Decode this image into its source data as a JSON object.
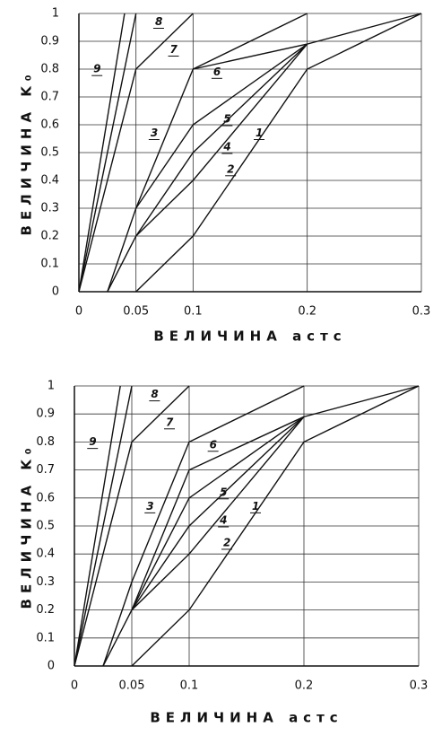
{
  "chart_data": [
    {
      "type": "line",
      "x_label": "ВЕЛИЧИНА aстс",
      "y_label": "ВЕЛИЧИНА K₀",
      "xlim": [
        0,
        0.3
      ],
      "xticks": [
        0,
        0.05,
        0.1,
        0.2,
        0.3
      ],
      "ylim": [
        0,
        1
      ],
      "yticks": [
        0,
        0.1,
        0.2,
        0.3,
        0.4,
        0.5,
        0.6,
        0.7,
        0.8,
        0.9,
        1
      ],
      "grid": true,
      "series": [
        {
          "name": "1",
          "color": "#111",
          "x": [
            0.05,
            0.1,
            0.2,
            0.3
          ],
          "values": [
            0,
            0.2,
            0.8,
            1
          ]
        },
        {
          "name": "2",
          "color": "#111",
          "x": [
            0.025,
            0.05,
            0.1,
            0.2,
            0.3
          ],
          "values": [
            0,
            0.2,
            0.4,
            0.89,
            1
          ]
        },
        {
          "name": "3",
          "color": "#111",
          "x": [
            0.025,
            0.05,
            0.1,
            0.2
          ],
          "values": [
            0,
            0.3,
            0.8,
            1
          ]
        },
        {
          "name": "4",
          "color": "#111",
          "x": [
            0.05,
            0.1,
            0.2
          ],
          "values": [
            0.2,
            0.5,
            0.89
          ]
        },
        {
          "name": "5",
          "color": "#111",
          "x": [
            0.05,
            0.1,
            0.2
          ],
          "values": [
            0.3,
            0.6,
            0.89
          ]
        },
        {
          "name": "6",
          "color": "#111",
          "x": [
            0.1,
            0.2
          ],
          "values": [
            0.8,
            0.89
          ]
        },
        {
          "name": "7",
          "color": "#111",
          "x": [
            0,
            0.05,
            0.1
          ],
          "values": [
            0,
            0.8,
            1
          ]
        },
        {
          "name": "8",
          "color": "#111",
          "x": [
            0,
            0.05
          ],
          "values": [
            0,
            1
          ]
        },
        {
          "name": "9",
          "color": "#111",
          "x": [
            0,
            0.04
          ],
          "values": [
            0,
            1
          ]
        }
      ]
    },
    {
      "type": "line",
      "x_label": "ВЕЛИЧИНА aстс",
      "y_label": "ВЕЛИЧИНА K₀",
      "xlim": [
        0,
        0.3
      ],
      "xticks": [
        0,
        0.05,
        0.1,
        0.2,
        0.3
      ],
      "ylim": [
        0,
        1
      ],
      "yticks": [
        0,
        0.1,
        0.2,
        0.3,
        0.4,
        0.5,
        0.6,
        0.7,
        0.8,
        0.9,
        1
      ],
      "grid": true,
      "series": [
        {
          "name": "1",
          "color": "#111",
          "x": [
            0.05,
            0.1,
            0.2,
            0.3
          ],
          "values": [
            0,
            0.2,
            0.8,
            1
          ]
        },
        {
          "name": "2",
          "color": "#111",
          "x": [
            0.025,
            0.05,
            0.1,
            0.2,
            0.3
          ],
          "values": [
            0,
            0.2,
            0.4,
            0.89,
            1
          ]
        },
        {
          "name": "3",
          "color": "#111",
          "x": [
            0.025,
            0.05,
            0.1,
            0.2
          ],
          "values": [
            0,
            0.3,
            0.8,
            1
          ]
        },
        {
          "name": "4",
          "color": "#111",
          "x": [
            0.05,
            0.1,
            0.2
          ],
          "values": [
            0.2,
            0.5,
            0.89
          ]
        },
        {
          "name": "5",
          "color": "#111",
          "x": [
            0.05,
            0.1,
            0.2
          ],
          "values": [
            0.2,
            0.6,
            0.89
          ]
        },
        {
          "name": "6",
          "color": "#111",
          "x": [
            0.05,
            0.1,
            0.2
          ],
          "values": [
            0.2,
            0.7,
            0.89
          ]
        },
        {
          "name": "7",
          "color": "#111",
          "x": [
            0,
            0.05,
            0.1
          ],
          "values": [
            0,
            0.8,
            1
          ]
        },
        {
          "name": "8",
          "color": "#111",
          "x": [
            0,
            0.05
          ],
          "values": [
            0,
            1
          ]
        },
        {
          "name": "9",
          "color": "#111",
          "x": [
            0,
            0.04
          ],
          "values": [
            0,
            1
          ]
        }
      ]
    }
  ]
}
